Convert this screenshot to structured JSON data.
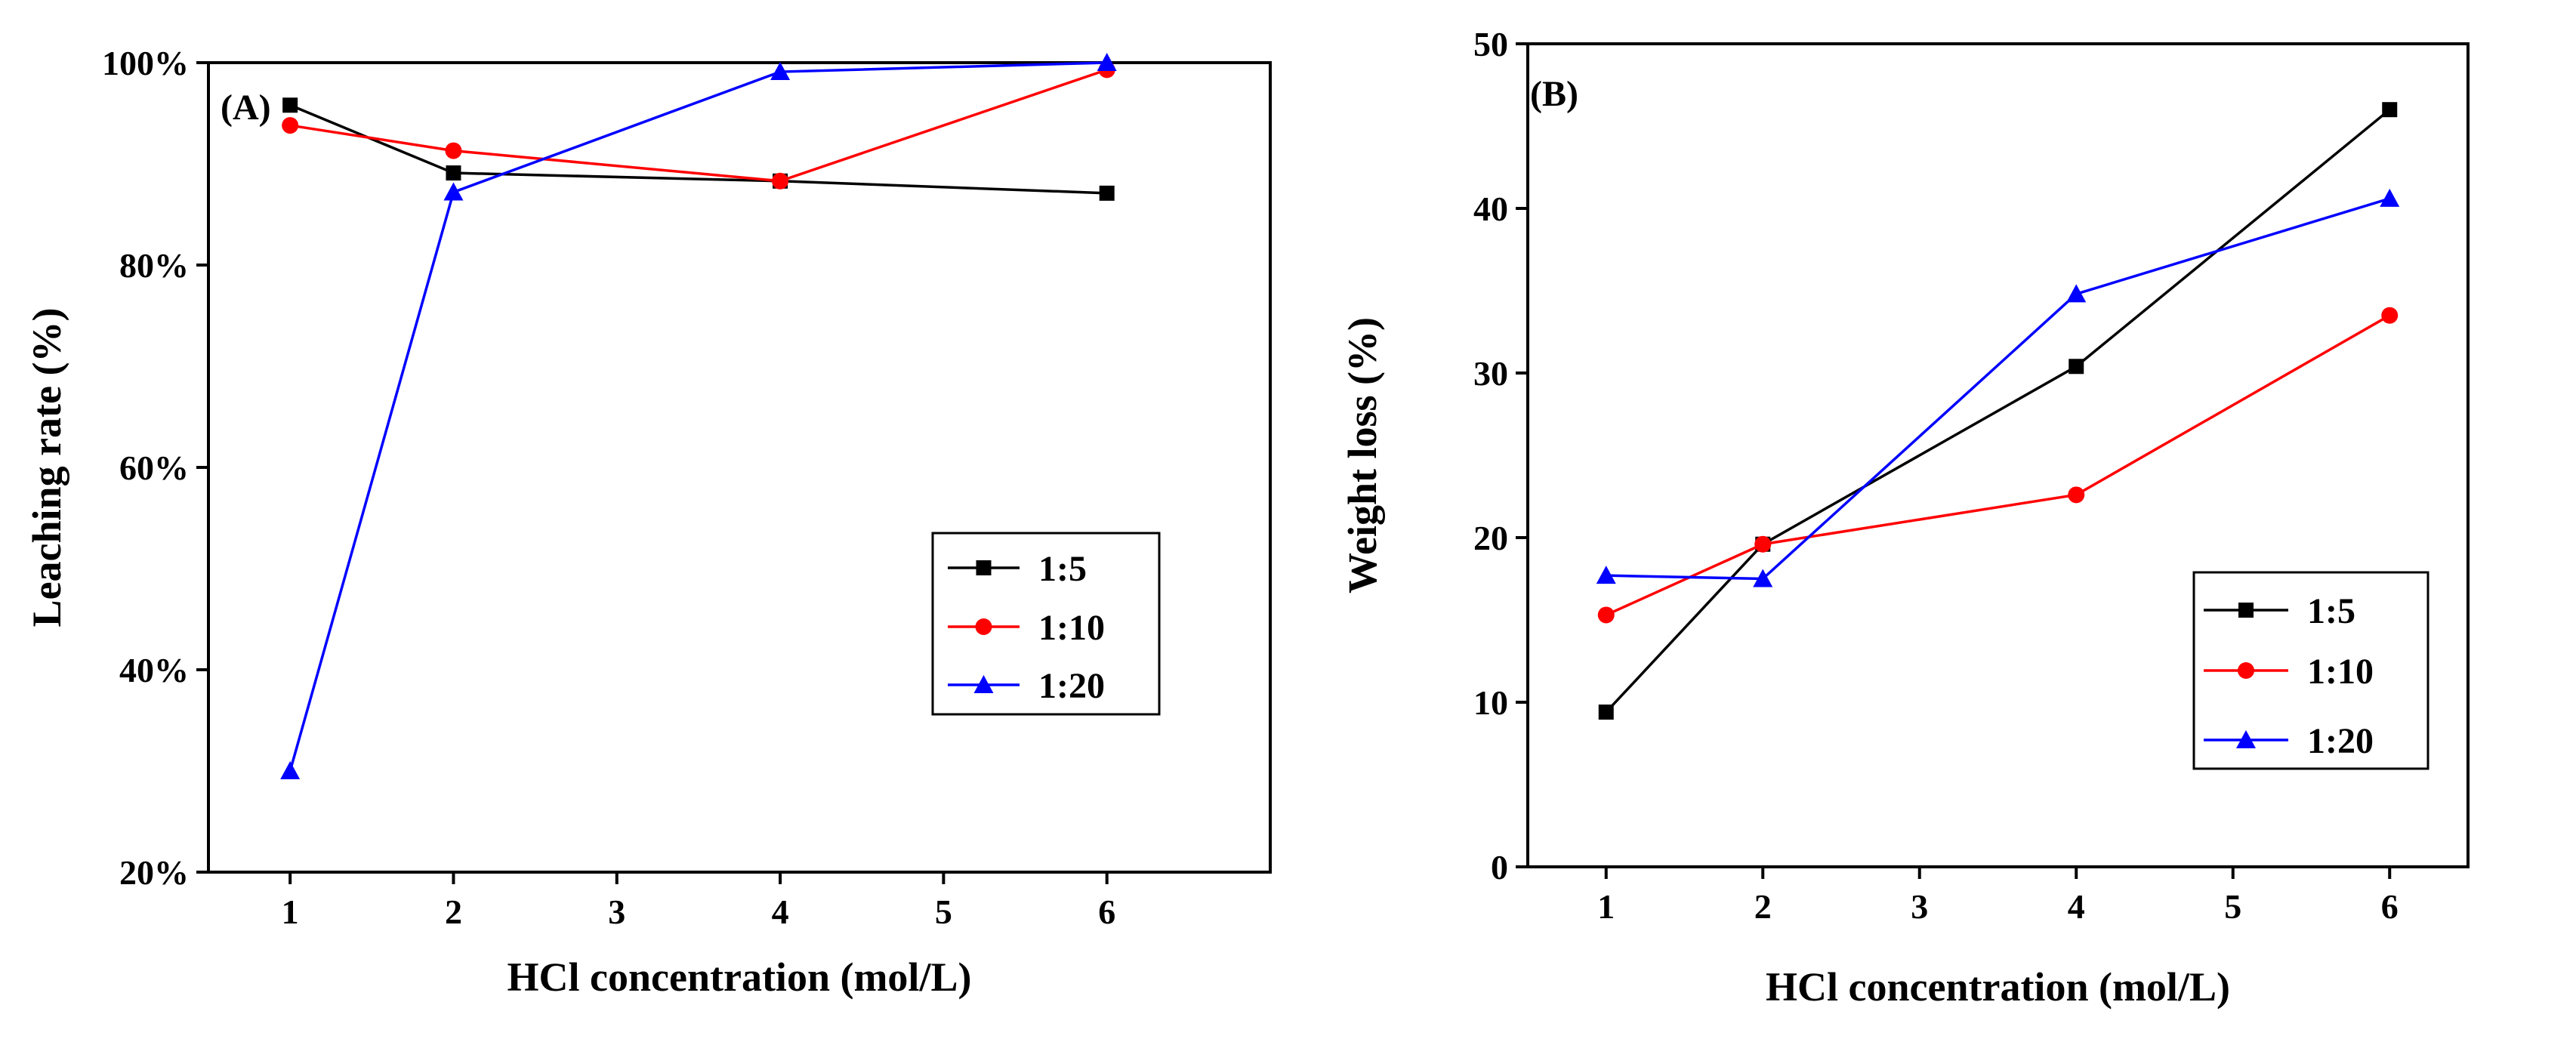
{
  "colors": {
    "s1_5": "#000000",
    "s1_10": "#ff0000",
    "s1_20": "#0000ff"
  },
  "chart_data": [
    {
      "type": "line",
      "panel_label": "(A)",
      "xlabel": "HCl concentration (mol/L)",
      "ylabel": "Leaching rate (%)",
      "xlim": [
        0.5,
        7.0
      ],
      "ylim": [
        20,
        100
      ],
      "xticks": [
        1,
        2,
        3,
        4,
        5,
        6
      ],
      "xtick_labels": [
        "1",
        "2",
        "3",
        "4",
        "5",
        "6"
      ],
      "yticks": [
        20,
        40,
        60,
        80,
        100
      ],
      "ytick_labels": [
        "20%",
        "40%",
        "60%",
        "80%",
        "100%"
      ],
      "x": [
        1,
        2,
        4,
        6
      ],
      "legend_position": "lower-right",
      "series": [
        {
          "name": "1:5",
          "marker": "square",
          "color": "#000000",
          "values": [
            95.8,
            89.1,
            88.3,
            87.1
          ]
        },
        {
          "name": "1:10",
          "marker": "circle",
          "color": "#ff0000",
          "values": [
            93.8,
            91.3,
            88.3,
            99.3
          ]
        },
        {
          "name": "1:20",
          "marker": "triangle",
          "color": "#0000ff",
          "values": [
            30.0,
            87.2,
            99.1,
            100.0
          ]
        }
      ]
    },
    {
      "type": "line",
      "panel_label": "(B)",
      "xlabel": "HCl concentration (mol/L)",
      "ylabel": "Weight loss (%)",
      "xlim": [
        0.5,
        6.5
      ],
      "ylim": [
        0,
        50
      ],
      "xticks": [
        1,
        2,
        3,
        4,
        5,
        6
      ],
      "xtick_labels": [
        "1",
        "2",
        "3",
        "4",
        "5",
        "6"
      ],
      "yticks": [
        0,
        10,
        20,
        30,
        40,
        50
      ],
      "ytick_labels": [
        "0",
        "10",
        "20",
        "30",
        "40",
        "50"
      ],
      "x": [
        1,
        2,
        4,
        6
      ],
      "legend_position": "lower-right",
      "series": [
        {
          "name": "1:5",
          "marker": "square",
          "color": "#000000",
          "values": [
            9.4,
            19.6,
            30.4,
            46.0
          ]
        },
        {
          "name": "1:10",
          "marker": "circle",
          "color": "#ff0000",
          "values": [
            15.3,
            19.6,
            22.6,
            33.5
          ]
        },
        {
          "name": "1:20",
          "marker": "triangle",
          "color": "#0000ff",
          "values": [
            17.7,
            17.5,
            34.8,
            40.6
          ]
        }
      ]
    }
  ]
}
